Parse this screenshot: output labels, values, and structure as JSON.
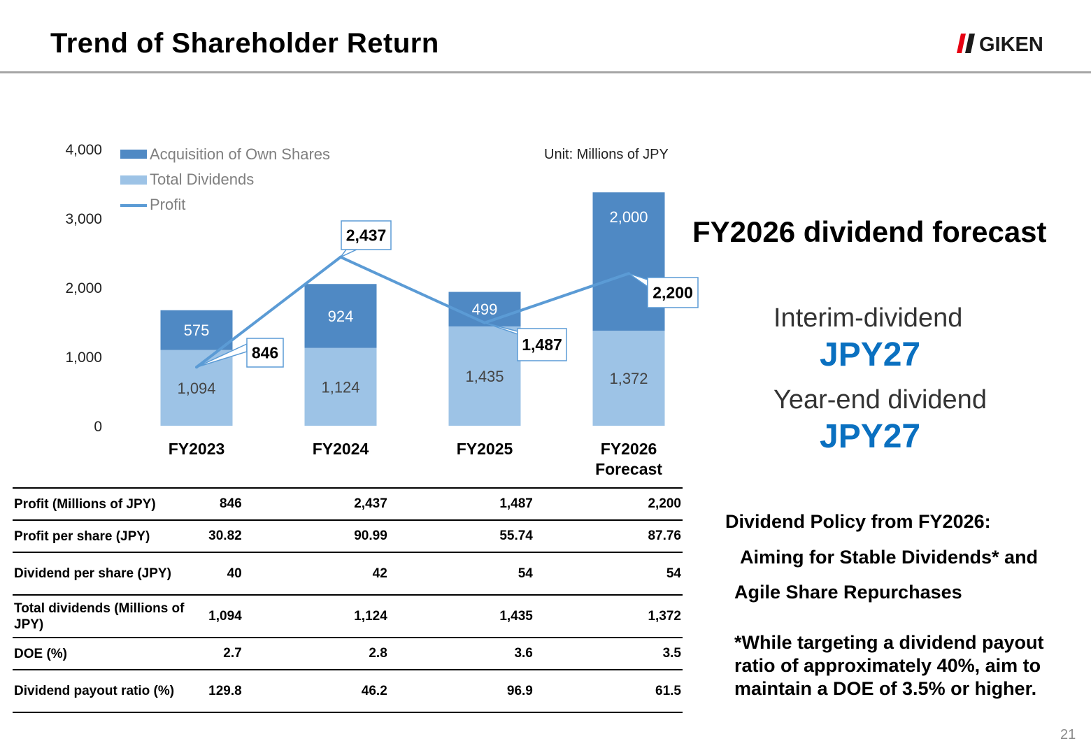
{
  "header": {
    "title": "Trend of Shareholder Return",
    "logo_text": "GIKEN",
    "page_number": "21"
  },
  "chart_data": {
    "type": "bar",
    "stacked": true,
    "categories": [
      "FY2023",
      "FY2024",
      "FY2025",
      "FY2026 Forecast"
    ],
    "series": [
      {
        "name": "Total Dividends",
        "type": "bar",
        "color": "#9dc3e6",
        "values": [
          1094,
          1124,
          1435,
          1372
        ]
      },
      {
        "name": "Acquisition of Own Shares",
        "type": "bar",
        "color": "#4f89c4",
        "values": [
          575,
          924,
          499,
          2000
        ]
      },
      {
        "name": "Profit",
        "type": "line",
        "color": "#5b9bd5",
        "values": [
          846,
          2437,
          1487,
          2200
        ]
      }
    ],
    "data_labels": {
      "dividends": [
        "1,094",
        "1,124",
        "1,435",
        "1,372"
      ],
      "acquisition": [
        "575",
        "924",
        "499",
        "2,000"
      ],
      "profit": [
        "846",
        "2,437",
        "1,487",
        "2,200"
      ]
    },
    "y_ticks": [
      "0",
      "1,000",
      "2,000",
      "3,000",
      "4,000"
    ],
    "ylim": [
      0,
      4000
    ],
    "legend": [
      "Acquisition of Own Shares",
      "Total Dividends",
      "Profit"
    ],
    "legend_position": "top-left",
    "unit": "Unit: Millions of JPY",
    "grid": false
  },
  "table": {
    "rows": [
      {
        "label": "Profit (Millions of JPY)",
        "values": [
          "846",
          "2,437",
          "1,487",
          "2,200"
        ]
      },
      {
        "label": "Profit per share (JPY)",
        "values": [
          "30.82",
          "90.99",
          "55.74",
          "87.76"
        ]
      },
      {
        "label": "Dividend per share (JPY)",
        "values": [
          "40",
          "42",
          "54",
          "54"
        ]
      },
      {
        "label": "Total dividends (Millions of JPY)",
        "values": [
          "1,094",
          "1,124",
          "1,435",
          "1,372"
        ]
      },
      {
        "label": "DOE (%)",
        "values": [
          "2.7",
          "2.8",
          "3.6",
          "3.5"
        ]
      },
      {
        "label": "Dividend payout ratio (%)",
        "values": [
          "129.8",
          "46.2",
          "96.9",
          "61.5"
        ]
      }
    ]
  },
  "forecast": {
    "title": "FY2026 dividend forecast",
    "interim_label": "Interim-dividend",
    "interim_value": "JPY27",
    "yearend_label": "Year-end dividend",
    "yearend_value": "JPY27"
  },
  "policy": {
    "heading": "Dividend Policy from FY2026:",
    "line1": "Aiming for Stable Dividends* and",
    "line2": "Agile Share Repurchases",
    "note1": "*While targeting a dividend payout",
    "note2": "ratio of approximately 40%, aim to",
    "note3": "maintain a DOE of 3.5% or higher."
  }
}
